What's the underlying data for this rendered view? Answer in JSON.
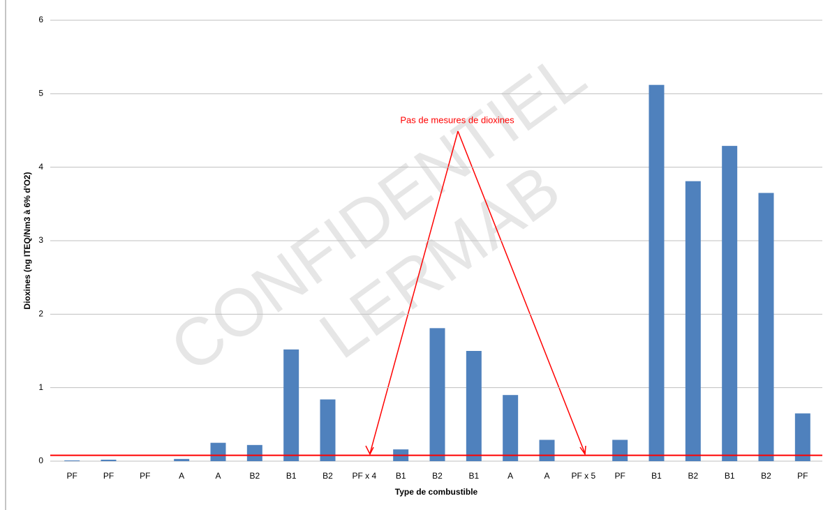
{
  "chart_data": {
    "type": "bar",
    "categories": [
      "PF",
      "PF",
      "PF",
      "A",
      "A",
      "B2",
      "B1",
      "B2",
      "PF x 4",
      "B1",
      "B2",
      "B1",
      "A",
      "A",
      "PF x 5",
      "PF",
      "B1",
      "B2",
      "B1",
      "B2",
      "PF"
    ],
    "values": [
      0.01,
      0.02,
      0,
      0.03,
      0.25,
      0.22,
      1.52,
      0.84,
      null,
      0.16,
      1.81,
      1.5,
      0.9,
      0.29,
      null,
      0.29,
      5.12,
      3.81,
      4.29,
      3.65,
      0.65
    ],
    "color": "#4f81bd",
    "ylim": [
      0,
      6
    ],
    "yticks": [
      0,
      1,
      2,
      3,
      4,
      5,
      6
    ],
    "grid": true,
    "y_label": "Dioxines (ng ITEQ/Nm3 à 6% d'O2)",
    "x_label": "Type de combustible",
    "reference_line": 0.08,
    "reference_color": "#ff0000",
    "annotation": "Pas de mesures de dioxines",
    "watermark": [
      "CONFIDENTIEL",
      "LERMAB"
    ]
  }
}
